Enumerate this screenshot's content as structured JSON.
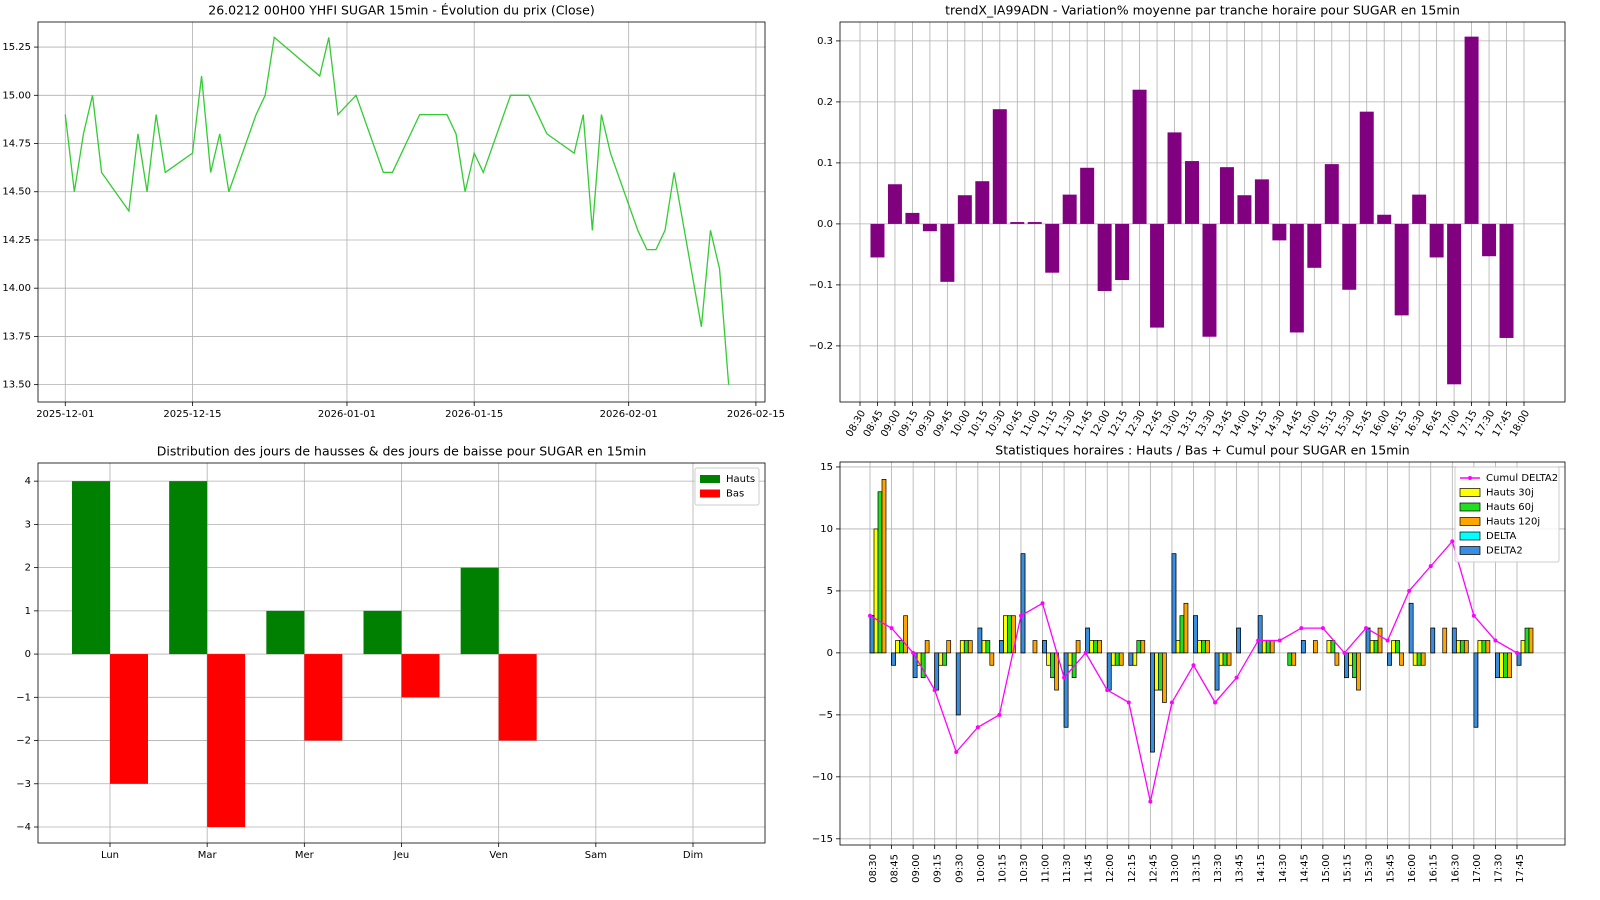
{
  "chart_data": [
    {
      "type": "line",
      "title": "26.0212 00H00 YHFI SUGAR 15min - Évolution du prix (Close)",
      "color": "#33cc33",
      "grid": true,
      "x": [
        "2025-12-01",
        "2025-12-02",
        "2025-12-03",
        "2025-12-04",
        "2025-12-05",
        "2025-12-08",
        "2025-12-09",
        "2025-12-10",
        "2025-12-11",
        "2025-12-12",
        "2025-12-15",
        "2025-12-16",
        "2025-12-17",
        "2025-12-18",
        "2025-12-19",
        "2025-12-22",
        "2025-12-23",
        "2025-12-24",
        "2025-12-29",
        "2025-12-30",
        "2025-12-31",
        "2026-01-02",
        "2026-01-05",
        "2026-01-06",
        "2026-01-07",
        "2026-01-08",
        "2026-01-09",
        "2026-01-12",
        "2026-01-13",
        "2026-01-14",
        "2026-01-15",
        "2026-01-16",
        "2026-01-19",
        "2026-01-20",
        "2026-01-21",
        "2026-01-22",
        "2026-01-23",
        "2026-01-26",
        "2026-01-27",
        "2026-01-28",
        "2026-01-29",
        "2026-01-30",
        "2026-02-02",
        "2026-02-03",
        "2026-02-04",
        "2026-02-05",
        "2026-02-06",
        "2026-02-09",
        "2026-02-10",
        "2026-02-11",
        "2026-02-12"
      ],
      "values": [
        14.9,
        14.5,
        14.8,
        15.0,
        14.6,
        14.4,
        14.8,
        14.5,
        14.9,
        14.6,
        14.7,
        15.1,
        14.6,
        14.8,
        14.5,
        14.9,
        15.0,
        15.3,
        15.1,
        15.3,
        14.9,
        15.0,
        14.6,
        14.6,
        14.7,
        14.8,
        14.9,
        14.9,
        14.8,
        14.5,
        14.7,
        14.6,
        15.0,
        15.0,
        15.0,
        14.9,
        14.8,
        14.7,
        14.9,
        14.3,
        14.9,
        14.7,
        14.3,
        14.2,
        14.2,
        14.3,
        14.6,
        13.8,
        14.3,
        14.1,
        13.5
      ],
      "xlim": [
        "2025-11-28",
        "2026-02-16"
      ],
      "xticks": [
        "2025-12-01",
        "2025-12-15",
        "2026-01-01",
        "2026-01-15",
        "2026-02-01",
        "2026-02-15"
      ],
      "ylim": [
        13.41,
        15.38
      ],
      "yticks": [
        {
          "value": 13.5,
          "label": "13.50"
        },
        13.75,
        {
          "value": 14,
          "label": "14.00"
        },
        14.25,
        {
          "value": 14.5,
          "label": "14.50"
        },
        14.75,
        {
          "value": 15,
          "label": "15.00"
        },
        15.25
      ]
    },
    {
      "type": "bar",
      "title": "trendX_IA99ADN - Variation% moyenne par tranche horaire pour SUGAR en 15min",
      "color": "#800080",
      "grid": true,
      "categories": [
        "08:30",
        "08:45",
        "09:00",
        "09:15",
        "09:30",
        "09:45",
        "10:00",
        "10:15",
        "10:30",
        "10:45",
        "11:00",
        "11:15",
        "11:30",
        "11:45",
        "12:00",
        "12:15",
        "12:30",
        "12:45",
        "13:00",
        "13:15",
        "13:30",
        "13:45",
        "14:00",
        "14:15",
        "14:30",
        "14:45",
        "15:00",
        "15:15",
        "15:30",
        "15:45",
        "16:00",
        "16:15",
        "16:30",
        "16:45",
        "17:00",
        "17:15",
        "17:30",
        "17:45",
        "18:00"
      ],
      "values": [
        null,
        -0.055,
        0.065,
        0.018,
        -0.012,
        -0.095,
        0.047,
        0.07,
        0.188,
        0.003,
        0.003,
        -0.08,
        0.048,
        0.092,
        -0.11,
        -0.092,
        0.22,
        -0.17,
        0.15,
        0.103,
        -0.185,
        0.093,
        0.047,
        0.073,
        -0.027,
        -0.178,
        -0.072,
        0.098,
        -0.108,
        0.184,
        0.015,
        -0.15,
        0.048,
        -0.055,
        -0.263,
        0.307,
        -0.053,
        -0.187,
        null
      ],
      "ylim": [
        -0.292,
        0.331
      ],
      "yticks": [
        {
          "value": -0.2,
          "label": "−0.2"
        },
        {
          "value": -0.1,
          "label": "−0.1"
        },
        {
          "value": 0,
          "label": "0.0"
        },
        0.1,
        0.2,
        0.3
      ]
    },
    {
      "type": "bar",
      "title": "Distribution des jours de hausses & des jours de baisse pour SUGAR en 15min",
      "grid": true,
      "legend": "upper right",
      "categories": [
        "Lun",
        "Mar",
        "Mer",
        "Jeu",
        "Ven",
        "Sam",
        "Dim"
      ],
      "series": [
        {
          "name": "Hauts",
          "color": "#008000",
          "values": [
            4,
            4,
            1,
            1,
            2,
            0,
            0
          ]
        },
        {
          "name": "Bas",
          "color": "#ff0000",
          "values": [
            -3,
            -4,
            -2,
            -1,
            -2,
            0,
            0
          ]
        }
      ],
      "ylim": [
        -4.37,
        4.42
      ],
      "yticks": [
        {
          "value": -4,
          "label": "−4"
        },
        {
          "value": -3,
          "label": "−3"
        },
        {
          "value": -2,
          "label": "−2"
        },
        {
          "value": -1,
          "label": "−1"
        },
        0,
        1,
        2,
        3,
        4
      ]
    },
    {
      "type": "combo",
      "title": "Statistiques horaires : Hauts / Bas + Cumul pour SUGAR en 15min",
      "grid": true,
      "legend": "upper right",
      "categories": [
        "08:30",
        "08:45",
        "09:00",
        "09:15",
        "09:30",
        "10:00",
        "10:15",
        "10:30",
        "11:00",
        "11:30",
        "11:45",
        "12:00",
        "12:15",
        "12:45",
        "13:00",
        "13:15",
        "13:30",
        "13:45",
        "14:15",
        "14:30",
        "14:45",
        "15:00",
        "15:15",
        "15:30",
        "15:45",
        "16:00",
        "16:15",
        "16:30",
        "17:00",
        "17:30",
        "17:45"
      ],
      "series": [
        {
          "name": "Cumul DELTA2",
          "type": "line",
          "color": "#ff00ff",
          "values": [
            3,
            2,
            0,
            -3,
            -8,
            -6,
            -5,
            3,
            4,
            -2,
            0,
            -3,
            -4,
            -12,
            -4,
            -1,
            -4,
            -2,
            1,
            1,
            2,
            2,
            0,
            2,
            1,
            5,
            7,
            9,
            3,
            1,
            0
          ]
        },
        {
          "name": "Hauts 30j",
          "type": "bar",
          "color": "#ffff00",
          "values": [
            10,
            1,
            -1,
            -1,
            1,
            1,
            3,
            0,
            -1,
            -1,
            1,
            -1,
            -1,
            -3,
            1,
            1,
            -1,
            0,
            1,
            0,
            0,
            1,
            -1,
            1,
            1,
            -1,
            0,
            1,
            1,
            -2,
            1
          ]
        },
        {
          "name": "Hauts 60j",
          "type": "bar",
          "color": "#22dd22",
          "values": [
            13,
            1,
            -2,
            -1,
            1,
            1,
            3,
            0,
            -2,
            -2,
            1,
            -1,
            1,
            -3,
            3,
            1,
            -1,
            0,
            1,
            -1,
            0,
            1,
            -2,
            1,
            1,
            -1,
            0,
            1,
            1,
            -2,
            2
          ]
        },
        {
          "name": "Hauts 120j",
          "type": "bar",
          "color": "#ffa500",
          "values": [
            14,
            3,
            1,
            1,
            1,
            -1,
            3,
            1,
            -3,
            1,
            1,
            -1,
            1,
            -4,
            4,
            1,
            -1,
            0,
            1,
            -1,
            1,
            -1,
            -3,
            2,
            -1,
            -1,
            2,
            1,
            1,
            -2,
            2
          ]
        },
        {
          "name": "DELTA",
          "type": "bar",
          "color": "#00ffff",
          "values": [
            3,
            -1,
            -2,
            -3,
            -5,
            2,
            1,
            8,
            1,
            -6,
            2,
            -3,
            -1,
            -8,
            8,
            3,
            -3,
            2,
            3,
            0,
            1,
            0,
            -2,
            2,
            -1,
            4,
            2,
            2,
            -6,
            -2,
            -1
          ]
        },
        {
          "name": "DELTA2",
          "type": "bar",
          "color": "#3a8ee0",
          "values": [
            3,
            -1,
            -2,
            -3,
            -5,
            2,
            1,
            8,
            1,
            -6,
            2,
            -3,
            -1,
            -8,
            8,
            3,
            -3,
            2,
            3,
            0,
            1,
            0,
            -2,
            2,
            -1,
            4,
            2,
            2,
            -6,
            -2,
            -1
          ]
        }
      ],
      "ylim": [
        -15.5,
        15.4
      ],
      "yticks": [
        {
          "value": -15,
          "label": "−15"
        },
        {
          "value": -10,
          "label": "−10"
        },
        {
          "value": -5,
          "label": "−5"
        },
        0,
        5,
        10,
        15
      ]
    }
  ]
}
